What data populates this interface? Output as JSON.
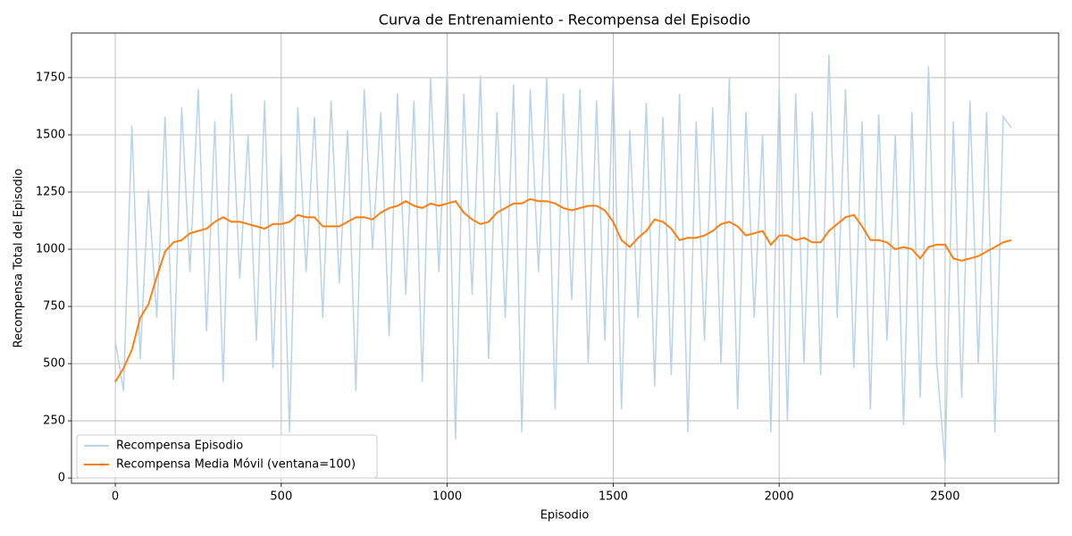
{
  "chart_data": {
    "type": "line",
    "title": "Curva de Entrenamiento - Recompensa del Episodio",
    "x_label": "Episodio",
    "y_label": "Recompensa Total del Episodio",
    "x": [
      0,
      25,
      50,
      75,
      100,
      125,
      150,
      175,
      200,
      225,
      250,
      275,
      300,
      325,
      350,
      375,
      400,
      425,
      450,
      475,
      500,
      525,
      550,
      575,
      600,
      625,
      650,
      675,
      700,
      725,
      750,
      775,
      800,
      825,
      850,
      875,
      900,
      925,
      950,
      975,
      1000,
      1025,
      1050,
      1075,
      1100,
      1125,
      1150,
      1175,
      1200,
      1225,
      1250,
      1275,
      1300,
      1325,
      1350,
      1375,
      1400,
      1425,
      1450,
      1475,
      1500,
      1525,
      1550,
      1575,
      1600,
      1625,
      1650,
      1675,
      1700,
      1725,
      1750,
      1775,
      1800,
      1825,
      1850,
      1875,
      1900,
      1925,
      1950,
      1975,
      2000,
      2025,
      2050,
      2075,
      2100,
      2125,
      2150,
      2175,
      2200,
      2225,
      2250,
      2275,
      2300,
      2325,
      2350,
      2375,
      2400,
      2425,
      2450,
      2475,
      2500,
      2525,
      2550,
      2575,
      2600,
      2625,
      2650,
      2675,
      2700
    ],
    "series": [
      {
        "name": "Recompensa Episodio",
        "color": "#b9d3e8",
        "values": [
          600,
          380,
          1540,
          520,
          1260,
          700,
          1580,
          430,
          1620,
          900,
          1700,
          640,
          1560,
          420,
          1680,
          870,
          1500,
          600,
          1650,
          480,
          1420,
          200,
          1620,
          900,
          1580,
          700,
          1650,
          850,
          1520,
          380,
          1700,
          1000,
          1600,
          620,
          1680,
          800,
          1650,
          420,
          1750,
          900,
          1780,
          170,
          1680,
          800,
          1760,
          520,
          1600,
          700,
          1720,
          200,
          1700,
          900,
          1750,
          300,
          1680,
          780,
          1700,
          500,
          1650,
          600,
          1750,
          300,
          1520,
          700,
          1640,
          400,
          1580,
          450,
          1680,
          200,
          1560,
          600,
          1620,
          500,
          1750,
          300,
          1600,
          700,
          1500,
          200,
          1700,
          250,
          1680,
          500,
          1600,
          450,
          1850,
          700,
          1700,
          480,
          1560,
          300,
          1590,
          600,
          1500,
          230,
          1600,
          350,
          1800,
          500,
          60,
          1560,
          350,
          1650,
          500,
          1600,
          200,
          1580,
          1530
        ]
      },
      {
        "name": "Recompensa Media Móvil (ventana=100)",
        "color": "#ff7f0e",
        "values": [
          420,
          480,
          560,
          700,
          760,
          880,
          990,
          1030,
          1040,
          1070,
          1080,
          1090,
          1120,
          1140,
          1120,
          1120,
          1110,
          1100,
          1090,
          1110,
          1110,
          1120,
          1150,
          1140,
          1140,
          1100,
          1100,
          1100,
          1120,
          1140,
          1140,
          1130,
          1160,
          1180,
          1190,
          1210,
          1190,
          1180,
          1200,
          1190,
          1200,
          1210,
          1160,
          1130,
          1110,
          1120,
          1160,
          1180,
          1200,
          1200,
          1220,
          1210,
          1210,
          1200,
          1180,
          1170,
          1180,
          1190,
          1190,
          1170,
          1120,
          1040,
          1010,
          1050,
          1080,
          1130,
          1120,
          1090,
          1040,
          1050,
          1050,
          1060,
          1080,
          1110,
          1120,
          1100,
          1060,
          1070,
          1080,
          1020,
          1060,
          1060,
          1040,
          1050,
          1030,
          1030,
          1080,
          1110,
          1140,
          1150,
          1100,
          1040,
          1040,
          1030,
          1000,
          1010,
          1000,
          960,
          1010,
          1020,
          1020,
          960,
          950,
          960,
          970,
          990,
          1010,
          1030,
          1040
        ]
      }
    ],
    "xlim": [
      -132,
      2842
    ],
    "ylim": [
      -23,
      1945
    ],
    "xticks": [
      0,
      500,
      1000,
      1500,
      2000,
      2500
    ],
    "yticks": [
      0,
      250,
      500,
      750,
      1000,
      1250,
      1500,
      1750
    ],
    "grid": true,
    "legend": "lower left"
  }
}
